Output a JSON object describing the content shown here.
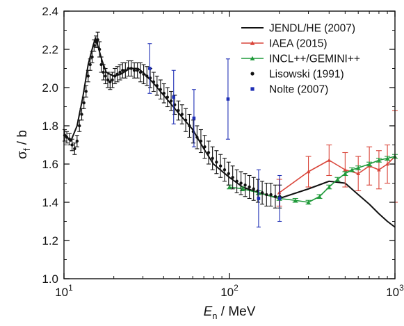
{
  "chart_data": {
    "type": "line",
    "title": "",
    "xlabel": {
      "symbol": "E",
      "sub": "n",
      "unit": " / MeV"
    },
    "ylabel": {
      "symbol": "σ",
      "sub": "f",
      "unit": " / b"
    },
    "xscale": "log",
    "xlim": [
      10,
      1000
    ],
    "ylim": [
      1.0,
      2.4
    ],
    "x_ticks": [
      10,
      100,
      1000
    ],
    "x_tick_labels": [
      {
        "base": "10",
        "exp": "1"
      },
      {
        "base": "10",
        "exp": "2"
      },
      {
        "base": "10",
        "exp": "3"
      }
    ],
    "y_ticks": [
      1.0,
      1.2,
      1.4,
      1.6,
      1.8,
      2.0,
      2.2,
      2.4
    ],
    "y_tick_labels": [
      "1.0",
      "1.2",
      "1.4",
      "1.6",
      "1.8",
      "2.0",
      "2.2",
      "2.4"
    ],
    "grid": false,
    "legend_position": "top-right",
    "series": [
      {
        "name": "JENDL/HE (2007)",
        "style": "line",
        "color": "#111111",
        "points": [
          [
            10,
            1.76
          ],
          [
            11,
            1.72
          ],
          [
            12,
            1.8
          ],
          [
            13,
            1.95
          ],
          [
            14,
            2.12
          ],
          [
            15,
            2.22
          ],
          [
            15.5,
            2.26
          ],
          [
            16,
            2.22
          ],
          [
            17,
            2.14
          ],
          [
            18,
            2.08
          ],
          [
            20,
            2.06
          ],
          [
            22,
            2.07
          ],
          [
            25,
            2.1
          ],
          [
            28,
            2.1
          ],
          [
            30,
            2.08
          ],
          [
            35,
            2.02
          ],
          [
            40,
            1.96
          ],
          [
            50,
            1.86
          ],
          [
            60,
            1.78
          ],
          [
            70,
            1.68
          ],
          [
            80,
            1.6
          ],
          [
            100,
            1.53
          ],
          [
            120,
            1.48
          ],
          [
            150,
            1.45
          ],
          [
            200,
            1.42
          ],
          [
            300,
            1.47
          ],
          [
            400,
            1.51
          ],
          [
            500,
            1.5
          ],
          [
            600,
            1.44
          ],
          [
            700,
            1.39
          ],
          [
            800,
            1.34
          ],
          [
            900,
            1.3
          ],
          [
            1000,
            1.27
          ]
        ]
      },
      {
        "name": "IAEA (2015)",
        "style": "line-errorbar",
        "marker": "triangle",
        "color": "#d9453a",
        "points": [
          [
            200,
            1.45,
            0.07
          ],
          [
            300,
            1.56,
            0.08
          ],
          [
            400,
            1.62,
            0.08
          ],
          [
            500,
            1.57,
            0.09
          ],
          [
            600,
            1.55,
            0.09
          ],
          [
            700,
            1.59,
            0.1
          ],
          [
            800,
            1.57,
            0.1
          ],
          [
            900,
            1.6,
            0.1
          ],
          [
            1000,
            1.64,
            0.24
          ]
        ]
      },
      {
        "name": "INCL++/GEMINI++",
        "style": "line-errorbar",
        "marker": "triangle",
        "color": "#1f9a3a",
        "points": [
          [
            100,
            1.48,
            0.01
          ],
          [
            120,
            1.47,
            0.01
          ],
          [
            150,
            1.45,
            0.01
          ],
          [
            200,
            1.42,
            0.01
          ],
          [
            250,
            1.41,
            0.01
          ],
          [
            300,
            1.4,
            0.01
          ],
          [
            350,
            1.43,
            0.01
          ],
          [
            400,
            1.48,
            0.01
          ],
          [
            450,
            1.52,
            0.01
          ],
          [
            500,
            1.55,
            0.01
          ],
          [
            550,
            1.57,
            0.01
          ],
          [
            600,
            1.58,
            0.01
          ],
          [
            700,
            1.6,
            0.01
          ],
          [
            800,
            1.62,
            0.01
          ],
          [
            900,
            1.63,
            0.01
          ],
          [
            1000,
            1.64,
            0.01
          ]
        ]
      },
      {
        "name": "Lisowski (1991)",
        "style": "scatter-errorbar",
        "marker": "circle",
        "color": "#111111",
        "points": [
          [
            10.1,
            1.75,
            0.03
          ],
          [
            10.4,
            1.74,
            0.03
          ],
          [
            10.8,
            1.73,
            0.03
          ],
          [
            11.2,
            1.7,
            0.03
          ],
          [
            11.6,
            1.68,
            0.03
          ],
          [
            12.0,
            1.72,
            0.03
          ],
          [
            12.4,
            1.8,
            0.03
          ],
          [
            12.8,
            1.86,
            0.03
          ],
          [
            13.2,
            1.92,
            0.03
          ],
          [
            13.6,
            1.98,
            0.03
          ],
          [
            14.0,
            2.06,
            0.03
          ],
          [
            14.4,
            2.12,
            0.03
          ],
          [
            14.8,
            2.16,
            0.03
          ],
          [
            15.2,
            2.22,
            0.03
          ],
          [
            15.6,
            2.24,
            0.03
          ],
          [
            16.0,
            2.25,
            0.04
          ],
          [
            16.4,
            2.2,
            0.04
          ],
          [
            16.8,
            2.12,
            0.04
          ],
          [
            17.3,
            2.08,
            0.04
          ],
          [
            17.8,
            2.06,
            0.04
          ],
          [
            18.4,
            2.04,
            0.04
          ],
          [
            19.0,
            2.03,
            0.04
          ],
          [
            19.6,
            2.04,
            0.04
          ],
          [
            20.3,
            2.06,
            0.04
          ],
          [
            21.0,
            2.07,
            0.04
          ],
          [
            21.8,
            2.08,
            0.04
          ],
          [
            22.6,
            2.09,
            0.04
          ],
          [
            23.5,
            2.09,
            0.04
          ],
          [
            24.5,
            2.1,
            0.04
          ],
          [
            25.5,
            2.1,
            0.04
          ],
          [
            26.6,
            2.09,
            0.04
          ],
          [
            27.8,
            2.09,
            0.04
          ],
          [
            29.0,
            2.08,
            0.05
          ],
          [
            30.3,
            2.07,
            0.05
          ],
          [
            31.7,
            2.06,
            0.05
          ],
          [
            33.2,
            2.05,
            0.05
          ],
          [
            34.8,
            2.03,
            0.05
          ],
          [
            36.5,
            2.01,
            0.05
          ],
          [
            38.3,
            1.99,
            0.05
          ],
          [
            40.2,
            1.97,
            0.05
          ],
          [
            42.2,
            1.95,
            0.05
          ],
          [
            44.4,
            1.93,
            0.05
          ],
          [
            46.7,
            1.91,
            0.05
          ],
          [
            49.1,
            1.88,
            0.05
          ],
          [
            51.7,
            1.86,
            0.05
          ],
          [
            54.4,
            1.83,
            0.06
          ],
          [
            57.3,
            1.8,
            0.06
          ],
          [
            60.4,
            1.77,
            0.06
          ],
          [
            63.7,
            1.74,
            0.06
          ],
          [
            67.2,
            1.72,
            0.06
          ],
          [
            70.9,
            1.69,
            0.06
          ],
          [
            74.8,
            1.66,
            0.06
          ],
          [
            79.0,
            1.63,
            0.06
          ],
          [
            83.5,
            1.61,
            0.06
          ],
          [
            88.3,
            1.59,
            0.06
          ],
          [
            93.4,
            1.57,
            0.06
          ],
          [
            98.8,
            1.55,
            0.06
          ],
          [
            104.6,
            1.53,
            0.06
          ],
          [
            110.8,
            1.51,
            0.06
          ],
          [
            117.4,
            1.5,
            0.06
          ],
          [
            124.4,
            1.49,
            0.06
          ],
          [
            131.9,
            1.48,
            0.06
          ],
          [
            139.9,
            1.47,
            0.06
          ],
          [
            148.5,
            1.46,
            0.06
          ],
          [
            157.7,
            1.45,
            0.06
          ],
          [
            167.5,
            1.44,
            0.06
          ],
          [
            178.0,
            1.44,
            0.06
          ],
          [
            189.2,
            1.43,
            0.06
          ],
          [
            201.2,
            1.43,
            0.06
          ]
        ]
      },
      {
        "name": "Nolte (2007)",
        "style": "scatter-errorbar",
        "marker": "square",
        "color": "#1f2fb5",
        "points": [
          [
            33,
            2.1,
            0.13
          ],
          [
            46,
            1.95,
            0.14
          ],
          [
            61,
            1.84,
            0.15
          ],
          [
            98,
            1.94,
            0.21
          ],
          [
            150,
            1.42,
            0.15
          ],
          [
            201,
            1.42,
            0.12
          ]
        ]
      }
    ]
  }
}
